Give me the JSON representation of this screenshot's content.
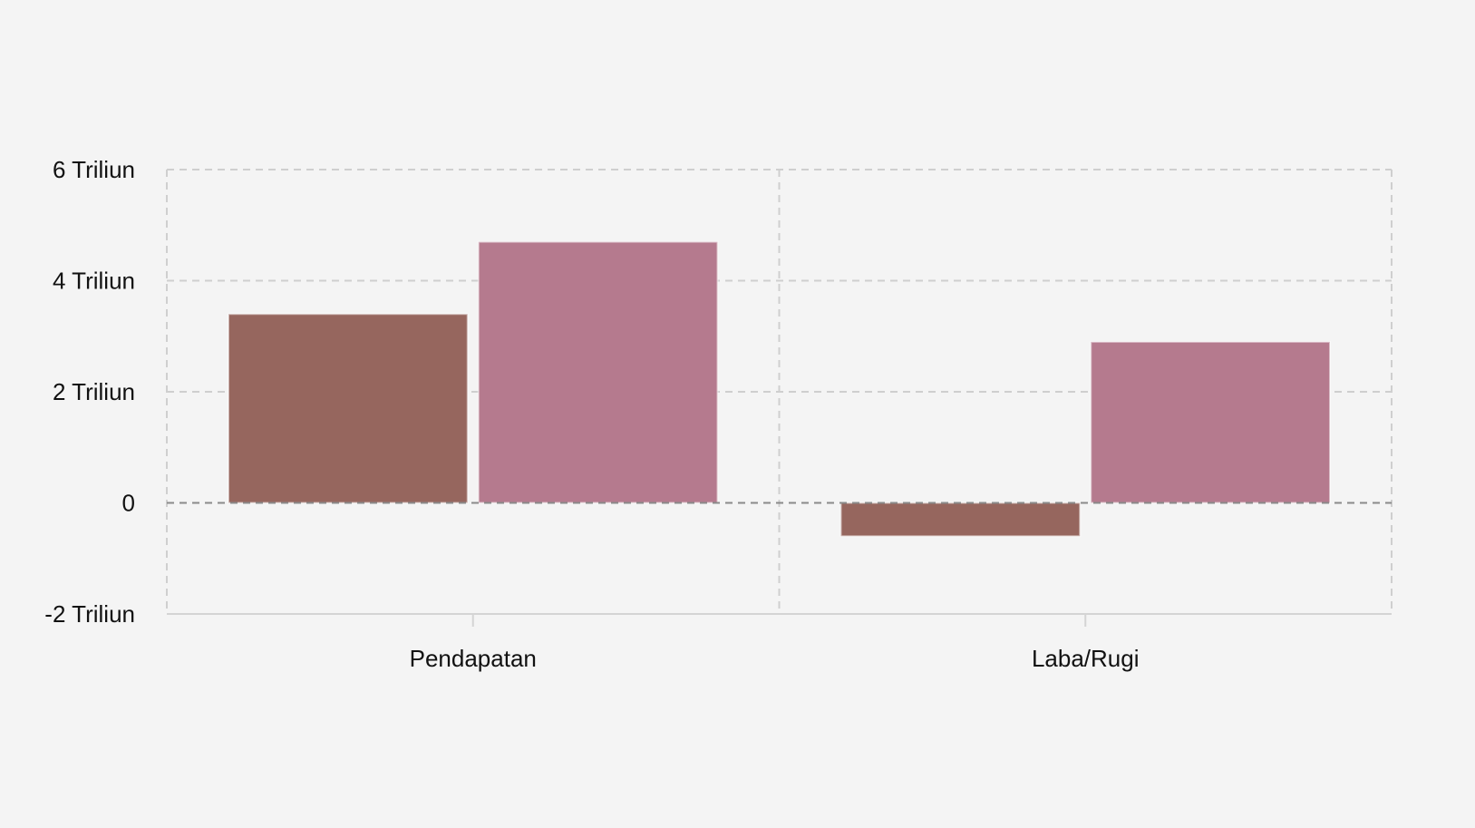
{
  "chart_data": {
    "type": "bar",
    "title": "",
    "xlabel": "",
    "ylabel": "",
    "categories": [
      "Pendapatan",
      "Laba/Rugi"
    ],
    "series": [
      {
        "name": "series-1",
        "color": "#96665e",
        "values": [
          3.4,
          -0.6
        ]
      },
      {
        "name": "series-2",
        "color": "#b57a8e",
        "values": [
          4.7,
          2.9
        ]
      }
    ],
    "ylim": [
      -2,
      6
    ],
    "yticks": [
      -2,
      0,
      2,
      4,
      6
    ],
    "ytick_labels": [
      "-2 Triliun",
      "0",
      "2 Triliun",
      "4 Triliun",
      "6 Triliun"
    ],
    "unit": "Triliun",
    "grid": true,
    "legend": "none"
  },
  "axis": {
    "y_labels": [
      "6 Triliun",
      "4 Triliun",
      "2 Triliun",
      "0",
      "-2 Triliun"
    ],
    "x_labels": [
      "Pendapatan",
      "Laba/Rugi"
    ]
  },
  "colors": {
    "background": "#f4f4f4",
    "grid": "#cfcfcf",
    "zero_line": "#8a8a8a",
    "series_1": "#96665e",
    "series_2": "#b57a8e"
  }
}
